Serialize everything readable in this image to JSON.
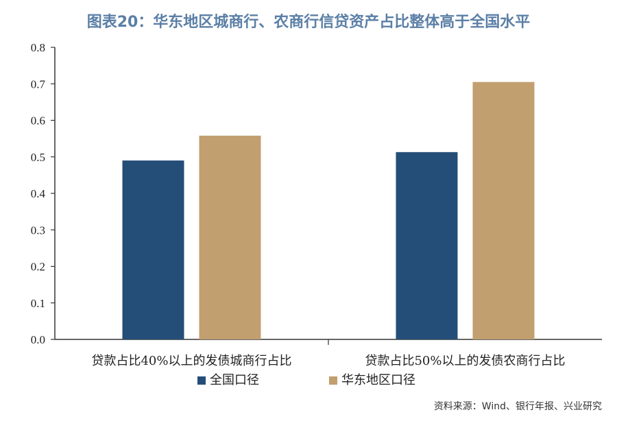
{
  "chart_data": {
    "type": "bar",
    "title": "图表20：华东地区城商行、农商行信贷资产占比整体高于全国水平",
    "categories": [
      "贷款占比40%以上的发债城商行占比",
      "贷款占比50%以上的发债农商行占比"
    ],
    "series": [
      {
        "name": "全国口径",
        "values": [
          0.49,
          0.513
        ],
        "color": "#244e78"
      },
      {
        "name": "华东地区口径",
        "values": [
          0.558,
          0.705
        ],
        "color": "#c19f6f"
      }
    ],
    "ylim": [
      0,
      0.8
    ],
    "yticks": [
      "0.0",
      "0.1",
      "0.2",
      "0.3",
      "0.4",
      "0.5",
      "0.6",
      "0.7",
      "0.8"
    ],
    "xlabel": "",
    "ylabel": "",
    "grid": false,
    "legend_position": "bottom"
  },
  "source": "资料来源：Wind、银行年报、兴业研究"
}
